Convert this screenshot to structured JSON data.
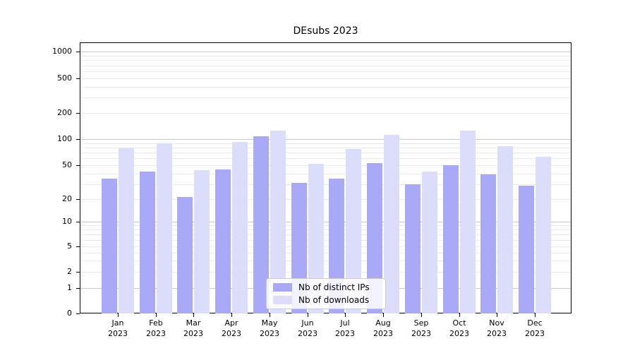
{
  "title": "DEsubs 2023",
  "chart_data": {
    "type": "bar",
    "title": "DEsubs 2023",
    "categories": [
      "Jan",
      "Feb",
      "Mar",
      "Apr",
      "May",
      "Jun",
      "Jul",
      "Aug",
      "Sep",
      "Oct",
      "Nov",
      "Dec"
    ],
    "year_label": "2023",
    "series": [
      {
        "name": "Nb of distinct IPs",
        "color": "#a9a9f7",
        "values": [
          35,
          42,
          21,
          45,
          107,
          31,
          35,
          53,
          30,
          50,
          39,
          29
        ]
      },
      {
        "name": "Nb of downloads",
        "color": "#dcdcfb",
        "values": [
          78,
          90,
          44,
          93,
          125,
          52,
          77,
          112,
          42,
          125,
          83,
          63
        ]
      }
    ],
    "yscale": "symlog",
    "yticks": [
      0,
      1,
      2,
      5,
      10,
      20,
      50,
      100,
      200,
      500,
      1000
    ],
    "ylim": [
      0,
      1300
    ],
    "xlabel": "",
    "ylabel": "",
    "grid": "horizontal",
    "legend_position": "lower center"
  },
  "legend": {
    "items": [
      {
        "label": "Nb of distinct IPs"
      },
      {
        "label": "Nb of downloads"
      }
    ]
  },
  "colors": {
    "bar_distinct_ips": "#a9a9f7",
    "bar_downloads": "#dcdcfb",
    "grid_major": "#c8c8c8",
    "grid_minor": "#eaeaea",
    "axis": "#000000",
    "legend_border": "#cbcbcb"
  }
}
